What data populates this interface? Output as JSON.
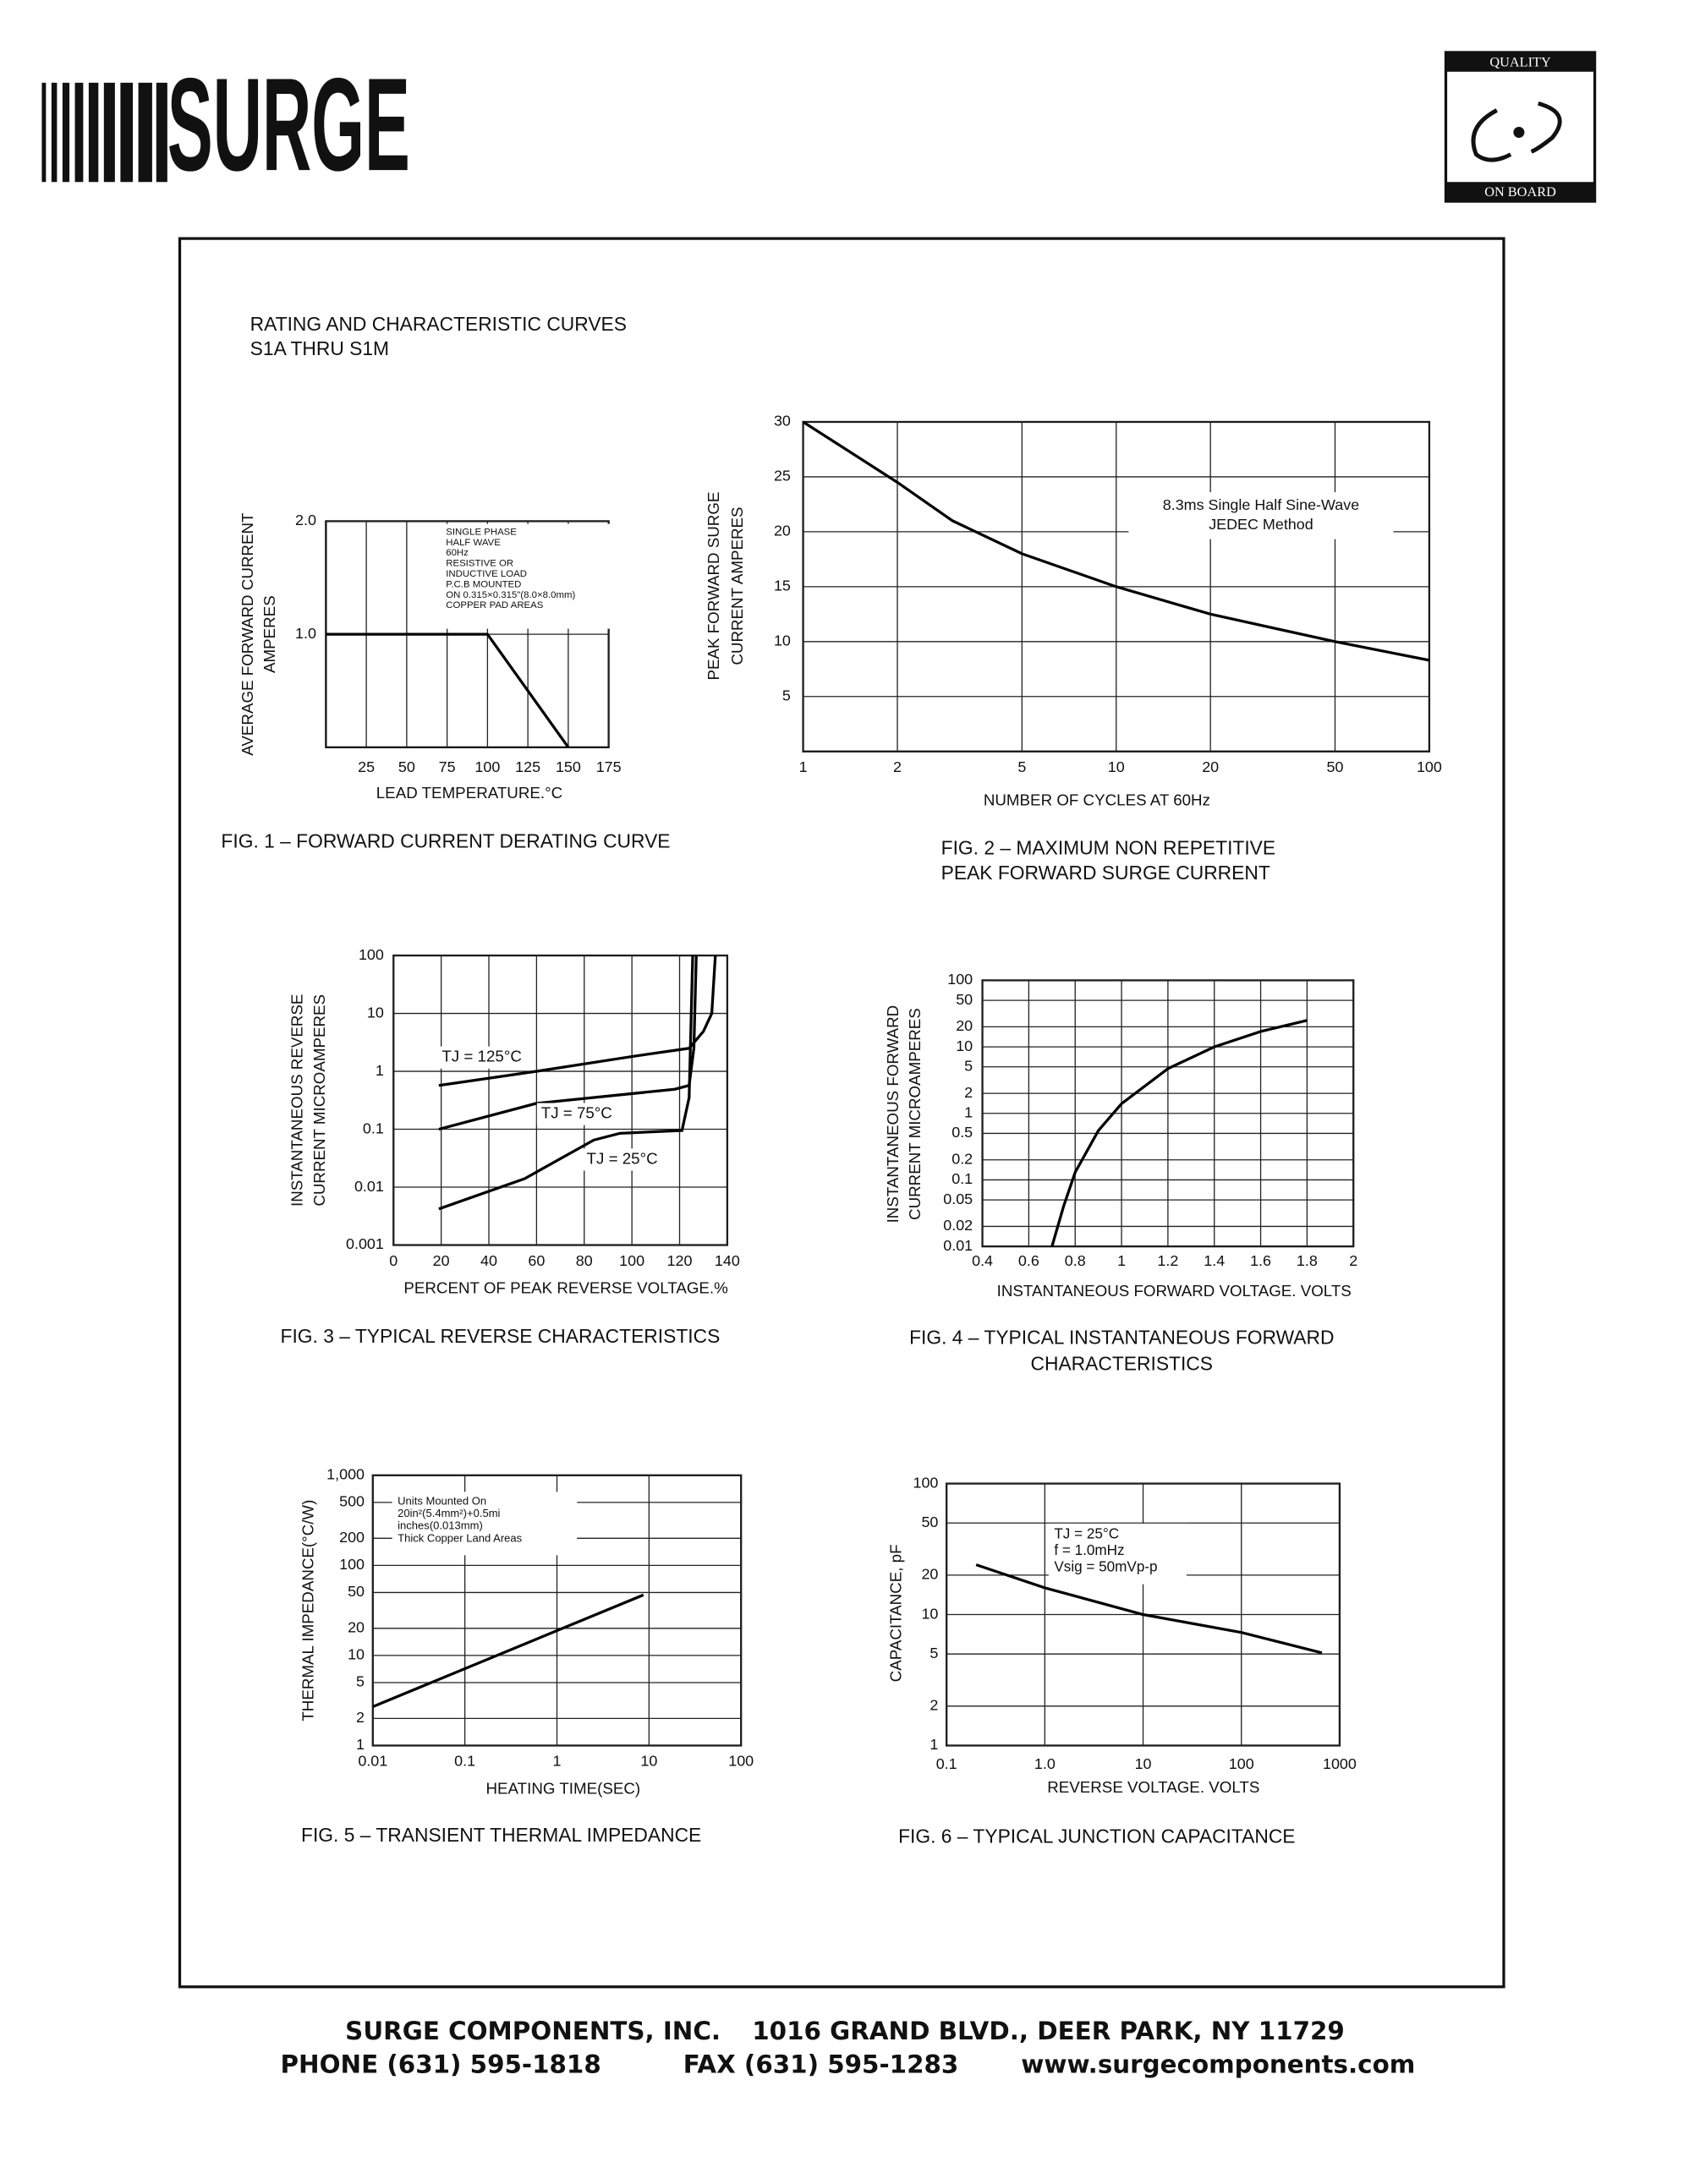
{
  "header": {
    "logo": "SURGE",
    "badge_top": "QUALITY",
    "badge_bottom": "ON BOARD"
  },
  "heading": [
    "RATING AND CHARACTERISTIC CURVES",
    "S1A THRU S1M"
  ],
  "chart_data": [
    {
      "type": "line",
      "title": [
        "FIG. 1 – FORWARD CURRENT DERATING CURVE"
      ],
      "xlabel": "LEAD TEMPERATURE.°C",
      "ylabel": [
        "AVERAGE FORWARD CURRENT",
        "AMPERES"
      ],
      "xlim": [
        0,
        175
      ],
      "ylim": [
        0,
        2
      ],
      "xticks": [
        25,
        50,
        75,
        100,
        125,
        150,
        175
      ],
      "yticks": [
        {
          "value": 1,
          "label": "1.0"
        },
        {
          "value": 2,
          "label": "2.0"
        }
      ],
      "grid": true,
      "series": [
        {
          "color": "#000000",
          "x": [
            0,
            100,
            150
          ],
          "values": [
            1,
            1,
            0
          ]
        }
      ],
      "annotation": [
        "SINGLE PHASE",
        "HALF WAVE",
        "60Hz",
        "RESISTIVE OR",
        "INDUCTIVE LOAD",
        "P.C.B MOUNTED",
        "ON 0.315×0.315\"(8.0×8.0mm)",
        "COPPER PAD AREAS"
      ]
    },
    {
      "type": "line",
      "title": [
        "FIG. 2 – MAXIMUM NON REPETITIVE",
        "PEAK FORWARD SURGE CURRENT"
      ],
      "xlabel": "NUMBER OF CYCLES AT 60Hz",
      "ylabel": [
        "PEAK FORWARD SURGE",
        "CURRENT AMPERES"
      ],
      "xlog": true,
      "xlim": [
        1,
        100
      ],
      "ylim": [
        0,
        30
      ],
      "xticks": [
        1,
        2,
        5,
        10,
        20,
        50,
        100
      ],
      "yticks": [
        5,
        10,
        15,
        20,
        25,
        30
      ],
      "grid": true,
      "series": [
        {
          "color": "#000000",
          "x": [
            1,
            2,
            3,
            5,
            10,
            20,
            50,
            100
          ],
          "values": [
            30,
            24.5,
            21,
            18,
            15,
            12.5,
            10,
            8.3
          ]
        }
      ],
      "annotation": [
        "8.3ms Single Half Sine-Wave",
        "JEDEC Method"
      ]
    },
    {
      "type": "line",
      "title": [
        "FIG. 3 – TYPICAL REVERSE CHARACTERISTICS"
      ],
      "xlabel": "PERCENT OF PEAK REVERSE VOLTAGE.%",
      "ylabel": [
        "INSTANTANEOUS REVERSE",
        "CURRENT MICROAMPERES"
      ],
      "ylog": true,
      "xlim": [
        0,
        140
      ],
      "ylim": [
        0.001,
        100
      ],
      "xticks": [
        0,
        20,
        40,
        60,
        80,
        100,
        120,
        140
      ],
      "yticks": [
        0.001,
        0.01,
        0.1,
        1,
        10,
        100
      ],
      "grid": true,
      "series": [
        {
          "name": "TJ = 125°C",
          "color": "#000000",
          "x": [
            19,
            60,
            100,
            124,
            130,
            133.5,
            135
          ],
          "values": [
            0.57,
            1,
            1.8,
            2.5,
            4.9,
            10,
            100
          ]
        },
        {
          "name": "TJ = 75°C",
          "color": "#000000",
          "x": [
            19,
            60,
            118,
            124,
            126,
            127
          ],
          "values": [
            0.1,
            0.28,
            0.49,
            0.57,
            2.5,
            100
          ]
        },
        {
          "name": "TJ = 25°C",
          "color": "#000000",
          "x": [
            19,
            55,
            84,
            95,
            121,
            124,
            125.5
          ],
          "values": [
            0.0042,
            0.014,
            0.065,
            0.085,
            0.095,
            0.35,
            100
          ]
        }
      ]
    },
    {
      "type": "line",
      "title": [
        "FIG. 4 – TYPICAL INSTANTANEOUS FORWARD",
        "CHARACTERISTICS"
      ],
      "xlabel": "INSTANTANEOUS FORWARD VOLTAGE. VOLTS",
      "ylabel": [
        "INSTANTANEOUS FORWARD",
        "CURRENT MICROAMPERES"
      ],
      "ylog": true,
      "xlim": [
        0.4,
        2
      ],
      "ylim": [
        0.01,
        100
      ],
      "xticks": [
        0.4,
        0.6,
        0.8,
        1,
        1.2,
        1.4,
        1.6,
        1.8,
        2
      ],
      "yticks": [
        0.01,
        0.02,
        0.05,
        0.1,
        0.2,
        0.5,
        1,
        2,
        5,
        10,
        20,
        50,
        100
      ],
      "grid": true,
      "series": [
        {
          "color": "#000000",
          "x": [
            0.7,
            0.75,
            0.8,
            0.9,
            1,
            1.2,
            1.4,
            1.6,
            1.8
          ],
          "values": [
            0.01,
            0.04,
            0.13,
            0.55,
            1.4,
            4.7,
            10,
            17,
            25
          ]
        }
      ]
    },
    {
      "type": "line",
      "title": [
        "FIG. 5 – TRANSIENT THERMAL IMPEDANCE"
      ],
      "xlabel": "HEATING TIME(SEC)",
      "ylabel": [
        "THERMAL IMPEDANCE(°C/W)"
      ],
      "xlog": true,
      "ylog": true,
      "xlim": [
        0.01,
        100
      ],
      "ylim": [
        1,
        1000
      ],
      "xticks": [
        0.01,
        0.1,
        1,
        10,
        100
      ],
      "yticks": [
        1,
        2,
        5,
        10,
        20,
        50,
        100,
        200,
        500,
        {
          "value": 1000,
          "label": "1,000"
        }
      ],
      "grid": true,
      "series": [
        {
          "color": "#000000",
          "x": [
            0.01,
            8.7
          ],
          "values": [
            2.7,
            47
          ]
        }
      ],
      "annotation": [
        "Units Mounted On",
        "20in²(5.4mm²)+0.5mi",
        "inches(0.013mm)",
        "Thick Copper Land Areas"
      ]
    },
    {
      "type": "line",
      "title": [
        "FIG. 6 – TYPICAL JUNCTION CAPACITANCE"
      ],
      "xlabel": "REVERSE VOLTAGE. VOLTS",
      "ylabel": [
        "CAPACITANCE, pF"
      ],
      "xlog": true,
      "ylog": true,
      "xlim": [
        0.1,
        1000
      ],
      "ylim": [
        1,
        100
      ],
      "xticks": [
        0.1,
        {
          "value": 1,
          "label": "1.0"
        },
        10,
        100,
        1000
      ],
      "yticks": [
        1,
        2,
        5,
        10,
        20,
        50,
        100
      ],
      "grid": true,
      "series": [
        {
          "color": "#000000",
          "x": [
            0.2,
            1,
            10,
            100,
            660
          ],
          "values": [
            24,
            16,
            10,
            7.3,
            5.1
          ]
        }
      ],
      "annotation": [
        "TJ = 25°C",
        "f = 1.0mHz",
        "Vsig = 50mVp-p"
      ]
    }
  ],
  "footer": {
    "company": "SURGE COMPONENTS, INC.",
    "address": "1016 GRAND BLVD., DEER PARK, NY 11729",
    "phone": "PHONE (631) 595-1818",
    "fax": "FAX (631) 595-1283",
    "web": "www.surgecomponents.com"
  }
}
